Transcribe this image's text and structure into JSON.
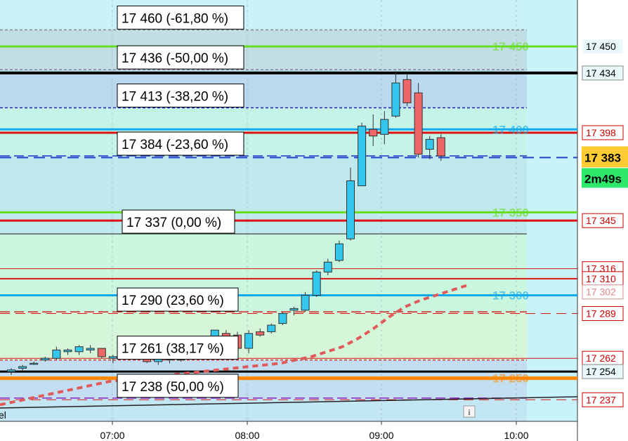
{
  "chart_data": {
    "type": "candlestick",
    "x_ticks": [
      "07:00",
      "08:00",
      "09:00",
      "10:00"
    ],
    "y_range": [
      17224,
      17478
    ],
    "current_price": "17 383",
    "countdown": "2m49s",
    "fib_levels": [
      {
        "label": "17 460 (-61,80 %)",
        "price": 17460,
        "line_color": "#888888",
        "dash": "4,3"
      },
      {
        "label": "17 436 (-50,00 %)",
        "price": 17436,
        "line_color": "#888888",
        "dash": "4,3"
      },
      {
        "label": "17 413 (-38,20 %)",
        "price": 17413,
        "line_color": "#2222cc",
        "dash": "4,3"
      },
      {
        "label": "17 384 (-23,60 %)",
        "price": 17384,
        "line_color": "#2233cc",
        "dash": "14,6"
      },
      {
        "label": "17 337 (0,00 %)",
        "price": 17337,
        "line_color": "#333333",
        "dash": ""
      },
      {
        "label": "17 290 (23,60 %)",
        "price": 17290,
        "line_color": "#cc2222",
        "dash": "14,6"
      },
      {
        "label": "17 261 (38,17 %)",
        "price": 17261,
        "line_color": "#cc3333",
        "dash": "4,3"
      },
      {
        "label": "17 238 (50,00 %)",
        "price": 17238,
        "line_color": "#8822cc",
        "dash": "14,6"
      }
    ],
    "level_lines": [
      {
        "label": "17 450",
        "price": 17450,
        "color": "#66dd22"
      },
      {
        "label": "17 400",
        "price": 17400,
        "color": "#11aaee"
      },
      {
        "label": "17 350",
        "price": 17350,
        "color": "#66dd22"
      },
      {
        "label": "17 300",
        "price": 17300,
        "color": "#11aaee"
      },
      {
        "label": "17 250",
        "price": 17250,
        "color": "#ff8800"
      }
    ],
    "right_axis_tags": [
      {
        "label": "17 450",
        "price": 17450,
        "color": "#000000",
        "border": "#ffffff"
      },
      {
        "label": "17 434",
        "price": 17434,
        "color": "#000000",
        "border": "#888888"
      },
      {
        "label": "17 398",
        "price": 17398,
        "color": "#cc0000",
        "border": "#cc0000"
      },
      {
        "label": "17 345",
        "price": 17345,
        "color": "#cc0000",
        "border": "#cc0000"
      },
      {
        "label": "17 316",
        "price": 17316,
        "color": "#cc0000",
        "border": "#cc0000"
      },
      {
        "label": "17 310",
        "price": 17310,
        "color": "#cc0000",
        "border": "#cc0000"
      },
      {
        "label": "17 302",
        "price": 17302,
        "color": "#dd8888",
        "border": "#dd8888"
      },
      {
        "label": "17 289",
        "price": 17289,
        "color": "#cc0000",
        "border": "#cc0000"
      },
      {
        "label": "17 262",
        "price": 17262,
        "color": "#cc0000",
        "border": "#cc0000"
      },
      {
        "label": "17 254",
        "price": 17254,
        "color": "#000000",
        "border": "#888888"
      },
      {
        "label": "17 237",
        "price": 17237,
        "color": "#cc0000",
        "border": "#cc0000"
      }
    ],
    "candles": [
      {
        "o": 17254,
        "h": 17256,
        "l": 17252,
        "c": 17255
      },
      {
        "o": 17256,
        "h": 17258,
        "l": 17254,
        "c": 17257
      },
      {
        "o": 17259,
        "h": 17260,
        "l": 17258,
        "c": 17259
      },
      {
        "o": 17261,
        "h": 17263,
        "l": 17260,
        "c": 17262
      },
      {
        "o": 17262,
        "h": 17269,
        "l": 17261,
        "c": 17267
      },
      {
        "o": 17266,
        "h": 17268,
        "l": 17264,
        "c": 17267
      },
      {
        "o": 17266,
        "h": 17270,
        "l": 17264,
        "c": 17269
      },
      {
        "o": 17267,
        "h": 17270,
        "l": 17265,
        "c": 17268
      },
      {
        "o": 17268,
        "h": 17268,
        "l": 17262,
        "c": 17263
      },
      {
        "o": 17262,
        "h": 17264,
        "l": 17259,
        "c": 17263
      },
      {
        "o": 17264,
        "h": 17266,
        "l": 17262,
        "c": 17265
      },
      {
        "o": 17264,
        "h": 17266,
        "l": 17261,
        "c": 17263
      },
      {
        "o": 17262,
        "h": 17264,
        "l": 17259,
        "c": 17260
      },
      {
        "o": 17260,
        "h": 17263,
        "l": 17258,
        "c": 17262
      },
      {
        "o": 17262,
        "h": 17264,
        "l": 17259,
        "c": 17261
      },
      {
        "o": 17262,
        "h": 17264,
        "l": 17260,
        "c": 17261
      },
      {
        "o": 17270,
        "h": 17272,
        "l": 17266,
        "c": 17270
      },
      {
        "o": 17272,
        "h": 17274,
        "l": 17270,
        "c": 17272
      },
      {
        "o": 17272,
        "h": 17279,
        "l": 17266,
        "c": 17279
      },
      {
        "o": 17277,
        "h": 17279,
        "l": 17273,
        "c": 17275
      },
      {
        "o": 17276,
        "h": 17278,
        "l": 17266,
        "c": 17268
      },
      {
        "o": 17268,
        "h": 17279,
        "l": 17265,
        "c": 17277
      },
      {
        "o": 17278,
        "h": 17280,
        "l": 17275,
        "c": 17276
      },
      {
        "o": 17278,
        "h": 17283,
        "l": 17277,
        "c": 17282
      },
      {
        "o": 17283,
        "h": 17290,
        "l": 17282,
        "c": 17289
      },
      {
        "o": 17291,
        "h": 17293,
        "l": 17288,
        "c": 17292
      },
      {
        "o": 17291,
        "h": 17302,
        "l": 17290,
        "c": 17300
      },
      {
        "o": 17300,
        "h": 17315,
        "l": 17299,
        "c": 17314
      },
      {
        "o": 17314,
        "h": 17322,
        "l": 17312,
        "c": 17320
      },
      {
        "o": 17321,
        "h": 17333,
        "l": 17320,
        "c": 17331
      },
      {
        "o": 17334,
        "h": 17377,
        "l": 17333,
        "c": 17369
      },
      {
        "o": 17366,
        "h": 17404,
        "l": 17366,
        "c": 17402
      },
      {
        "o": 17400,
        "h": 17409,
        "l": 17390,
        "c": 17396
      },
      {
        "o": 17397,
        "h": 17411,
        "l": 17391,
        "c": 17406
      },
      {
        "o": 17408,
        "h": 17435,
        "l": 17407,
        "c": 17428
      },
      {
        "o": 17430,
        "h": 17433,
        "l": 17414,
        "c": 17416
      },
      {
        "o": 17422,
        "h": 17428,
        "l": 17383,
        "c": 17385
      },
      {
        "o": 17388,
        "h": 17396,
        "l": 17382,
        "c": 17394
      },
      {
        "o": 17395,
        "h": 17397,
        "l": 17381,
        "c": 17384
      }
    ],
    "moving_average": [
      17234,
      17236,
      17238,
      17240,
      17242,
      17244,
      17246,
      17248,
      17249,
      17250,
      17251,
      17252,
      17253,
      17254,
      17255,
      17256,
      17257,
      17258,
      17259,
      17261,
      17263,
      17266,
      17269,
      17274,
      17280,
      17287,
      17293,
      17297,
      17300,
      17303,
      17306
    ]
  },
  "info_icon": "i",
  "left_edge_label": "el"
}
